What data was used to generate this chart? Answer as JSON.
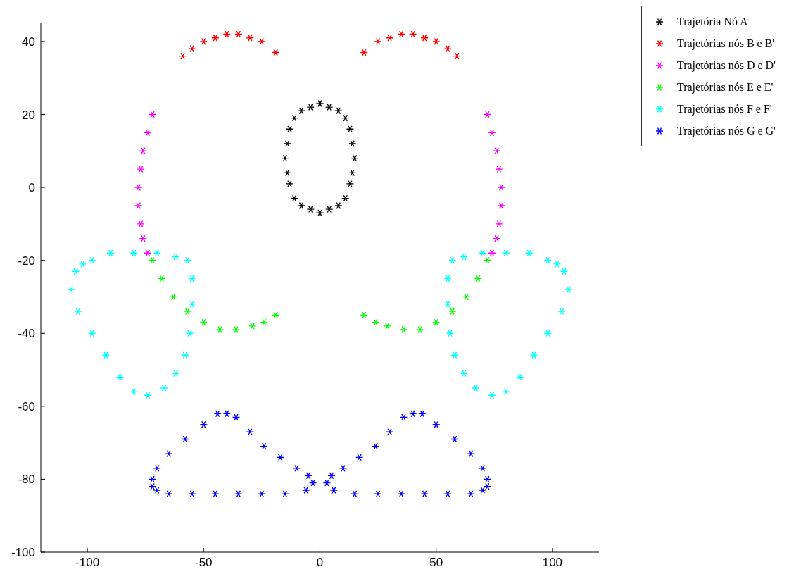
{
  "chart_data": {
    "type": "scatter",
    "marker": "cross",
    "legend": "top right",
    "xlim": [
      -120,
      120
    ],
    "ylim": [
      -100,
      45
    ],
    "xticks": [
      -100,
      -50,
      0,
      50,
      100
    ],
    "yticks": [
      -100,
      -80,
      -60,
      -40,
      -20,
      0,
      20,
      40
    ],
    "series": [
      {
        "name": "Trajetória Nó A",
        "color": "#000000",
        "x": [
          15,
          14,
          13,
          11,
          8,
          4,
          0,
          -4,
          -8,
          -11,
          -13,
          -14,
          -15,
          -14,
          -13,
          -11,
          -8,
          -4,
          0,
          4,
          8,
          11,
          13,
          14
        ],
        "values": [
          8,
          12,
          16,
          19,
          21,
          22,
          23,
          22,
          21,
          19,
          16,
          12,
          8,
          4,
          1,
          -3,
          -5,
          -6,
          -7,
          -6,
          -5,
          -3,
          1,
          4
        ]
      },
      {
        "name": "Trajetórias nós B e B'",
        "color": "#ff0000",
        "x": [
          -59,
          -55,
          -50,
          -45,
          -40,
          -35,
          -30,
          -25,
          -19,
          19,
          25,
          30,
          35,
          40,
          45,
          50,
          55,
          59
        ],
        "values": [
          36,
          38,
          40,
          41,
          42,
          42,
          41,
          40,
          37,
          37,
          40,
          41,
          42,
          42,
          41,
          40,
          38,
          36
        ]
      },
      {
        "name": "Trajetórias nós D e D'",
        "color": "#ff00ff",
        "x": [
          -72,
          -74,
          -76,
          -77,
          -78,
          -78,
          -77,
          -76,
          -74,
          72,
          74,
          76,
          77,
          78,
          78,
          77,
          76,
          74
        ],
        "values": [
          20,
          15,
          10,
          5,
          0,
          -5,
          -10,
          -14,
          -18,
          20,
          15,
          10,
          5,
          0,
          -5,
          -10,
          -14,
          -18
        ]
      },
      {
        "name": "Trajetórias nós E e E'",
        "color": "#00ff00",
        "x": [
          -72,
          -68,
          -63,
          -57,
          -50,
          -43,
          -36,
          -29,
          -24,
          -19,
          19,
          24,
          29,
          36,
          43,
          50,
          57,
          63,
          68,
          72
        ],
        "values": [
          -20,
          -25,
          -30,
          -34,
          -37,
          -39,
          -39,
          -38,
          -37,
          -35,
          -35,
          -37,
          -38,
          -39,
          -39,
          -37,
          -34,
          -30,
          -25,
          -20
        ]
      },
      {
        "name": "Trajetórias nós F e F'",
        "color": "#00ffff",
        "x": [
          -98,
          -90,
          -80,
          -70,
          -62,
          -57,
          -55,
          -55,
          -56,
          -58,
          -62,
          -67,
          -74,
          -80,
          -86,
          -92,
          -98,
          -104,
          -107,
          -105,
          -102,
          98,
          90,
          80,
          70,
          62,
          57,
          55,
          55,
          56,
          58,
          62,
          67,
          74,
          80,
          86,
          92,
          98,
          104,
          107,
          105,
          102
        ],
        "values": [
          -20,
          -18,
          -18,
          -18,
          -19,
          -20,
          -25,
          -32,
          -40,
          -46,
          -51,
          -55,
          -57,
          -56,
          -52,
          -46,
          -40,
          -34,
          -28,
          -23,
          -21,
          -20,
          -18,
          -18,
          -18,
          -19,
          -20,
          -25,
          -32,
          -40,
          -46,
          -51,
          -55,
          -57,
          -56,
          -52,
          -46,
          -40,
          -34,
          -28,
          -23,
          -21
        ]
      },
      {
        "name": "Trajetórias nós G e G'",
        "color": "#0000ff",
        "x": [
          -72,
          -70,
          -65,
          -58,
          -50,
          -44,
          -40,
          -36,
          -30,
          -24,
          -17,
          -10,
          -5,
          -3,
          -6,
          -15,
          -25,
          -35,
          -45,
          -55,
          -65,
          -70,
          -72,
          72,
          70,
          65,
          58,
          50,
          44,
          40,
          36,
          30,
          24,
          17,
          10,
          5,
          3,
          6,
          15,
          25,
          35,
          45,
          55,
          65,
          70,
          72
        ],
        "values": [
          -80,
          -77,
          -73,
          -69,
          -65,
          -62,
          -62,
          -63,
          -67,
          -71,
          -74,
          -77,
          -79,
          -81,
          -83,
          -84,
          -84,
          -84,
          -84,
          -84,
          -84,
          -83,
          -82,
          -80,
          -77,
          -73,
          -69,
          -65,
          -62,
          -62,
          -63,
          -67,
          -71,
          -74,
          -77,
          -79,
          -81,
          -83,
          -84,
          -84,
          -84,
          -84,
          -84,
          -84,
          -83,
          -82
        ]
      }
    ]
  }
}
